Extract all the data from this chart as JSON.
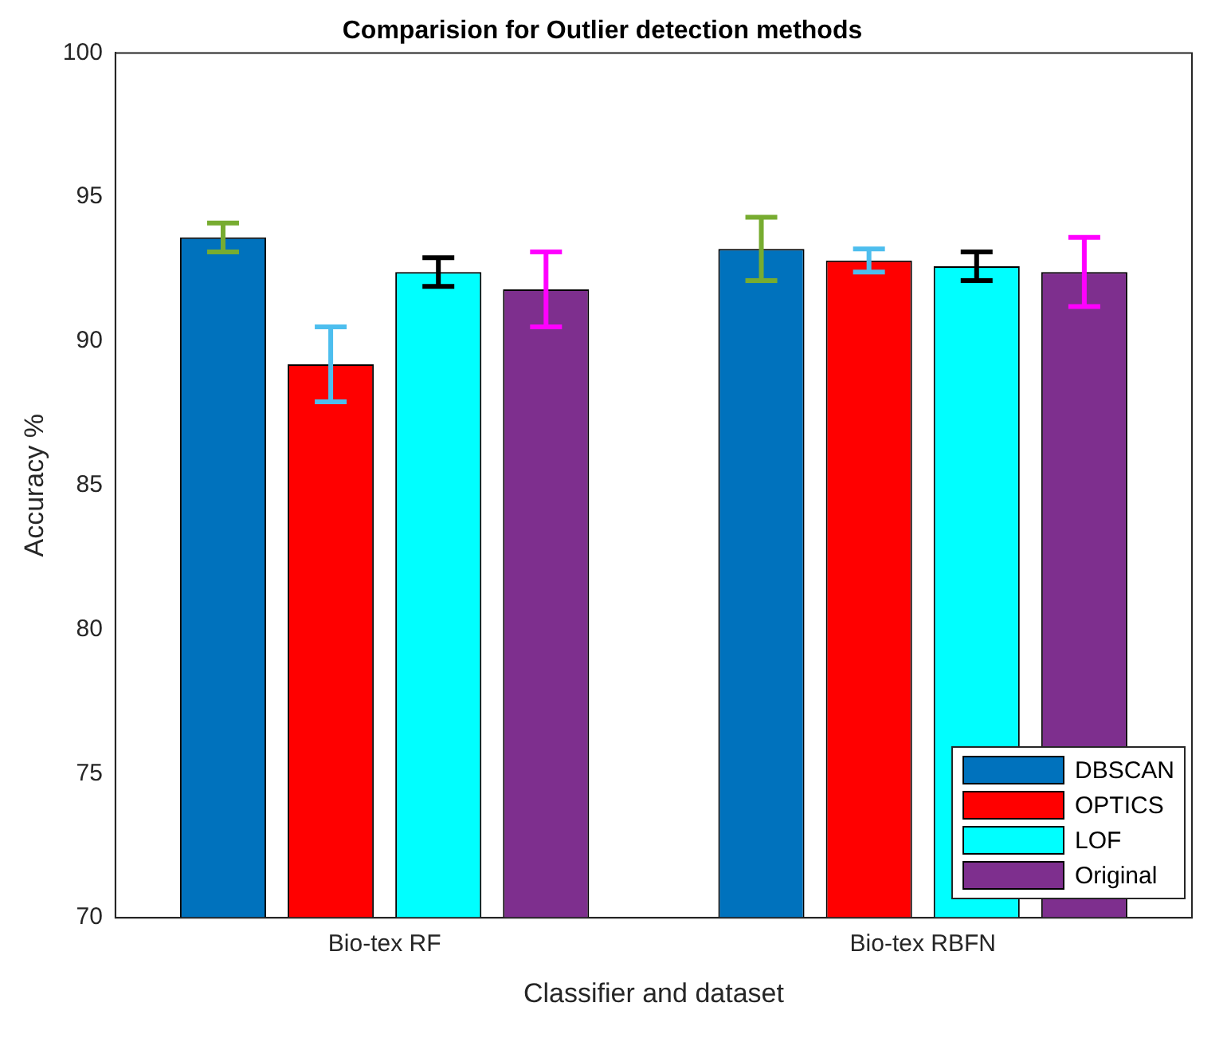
{
  "chart_data": {
    "type": "bar",
    "title": "Comparision for Outlier detection methods",
    "xlabel": "Classifier and dataset",
    "ylabel": "Accuracy %",
    "categories": [
      "Bio-tex RF",
      "Bio-tex RBFN"
    ],
    "series": [
      {
        "name": "DBSCAN",
        "color": "#0072bd",
        "values": [
          93.6,
          93.2
        ],
        "errors": [
          0.5,
          1.1
        ]
      },
      {
        "name": "OPTICS",
        "color": "#ff0000",
        "values": [
          89.2,
          92.8
        ],
        "errors": [
          1.3,
          0.4
        ]
      },
      {
        "name": "LOF",
        "color": "#00ffff",
        "values": [
          92.4,
          92.6
        ],
        "errors": [
          0.5,
          0.5
        ]
      },
      {
        "name": "Original",
        "color": "#7e2f8e",
        "values": [
          91.8,
          92.4
        ],
        "errors": [
          1.3,
          1.2
        ]
      }
    ],
    "ylim": [
      70,
      100
    ],
    "yticks": [
      70,
      75,
      80,
      85,
      90,
      95,
      100
    ],
    "grid": false,
    "legend": "bottom right"
  }
}
